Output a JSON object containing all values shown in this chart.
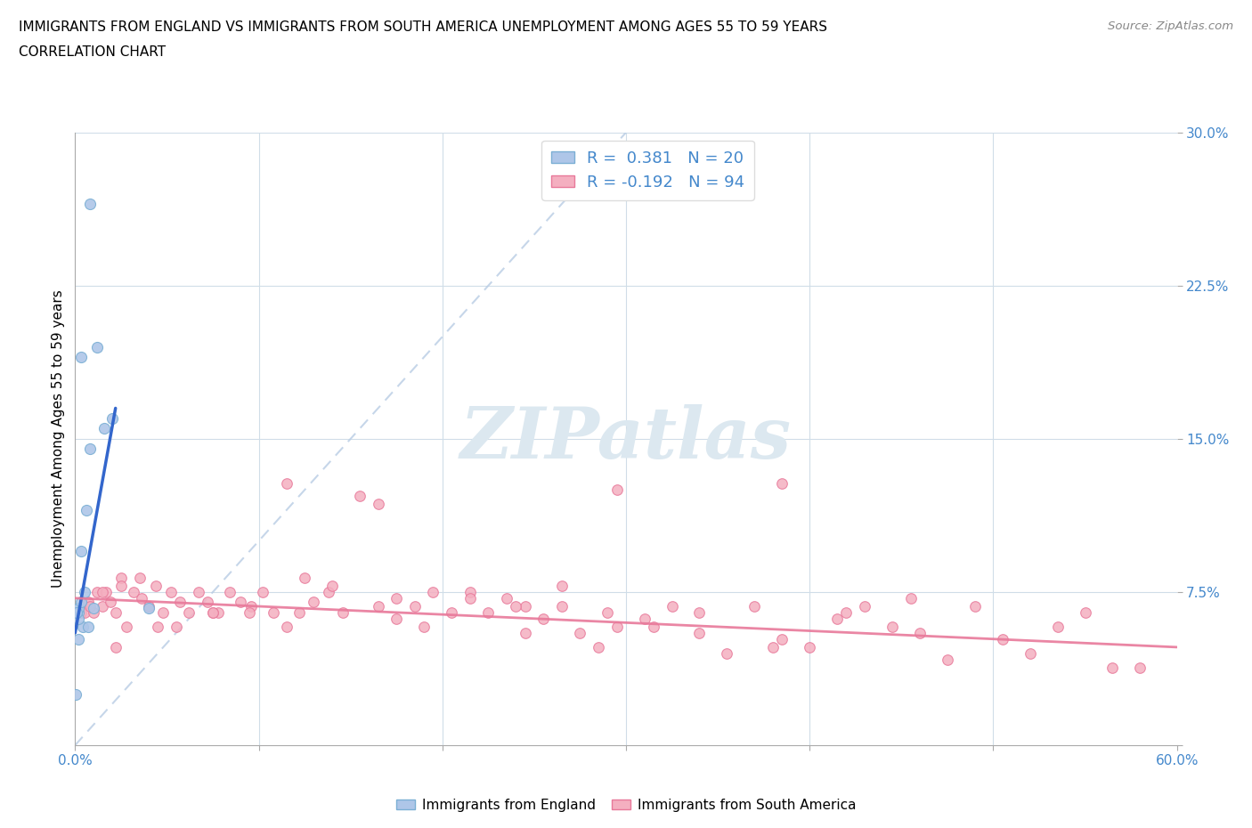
{
  "title_line1": "IMMIGRANTS FROM ENGLAND VS IMMIGRANTS FROM SOUTH AMERICA UNEMPLOYMENT AMONG AGES 55 TO 59 YEARS",
  "title_line2": "CORRELATION CHART",
  "source": "Source: ZipAtlas.com",
  "ylabel": "Unemployment Among Ages 55 to 59 years",
  "xlim": [
    0.0,
    0.6
  ],
  "ylim": [
    0.0,
    0.3
  ],
  "england_r": 0.381,
  "england_n": 20,
  "sa_r": -0.192,
  "sa_n": 94,
  "england_color": "#aec6e8",
  "england_edge": "#7bafd4",
  "england_line_color": "#3366cc",
  "sa_color": "#f4afc0",
  "sa_edge": "#e8799a",
  "sa_line_color": "#e8799a",
  "diagonal_color": "#b8cce4",
  "watermark_color": "#dce8f0",
  "tick_color": "#4488cc",
  "grid_color": "#d0dde8",
  "england_points_x": [
    0.002,
    0.008,
    0.012,
    0.003,
    0.008,
    0.016,
    0.02,
    0.003,
    0.006,
    0.01,
    0.002,
    0.005,
    0.003,
    0.004,
    0.007,
    0.002,
    0.001,
    0.0005,
    0.04,
    0.002
  ],
  "england_points_y": [
    0.065,
    0.265,
    0.195,
    0.19,
    0.145,
    0.155,
    0.16,
    0.095,
    0.115,
    0.067,
    0.067,
    0.075,
    0.07,
    0.058,
    0.058,
    0.062,
    0.065,
    0.025,
    0.067,
    0.052
  ],
  "sa_points_x": [
    0.003,
    0.005,
    0.007,
    0.01,
    0.012,
    0.015,
    0.017,
    0.019,
    0.022,
    0.025,
    0.028,
    0.032,
    0.036,
    0.04,
    0.044,
    0.048,
    0.052,
    0.057,
    0.062,
    0.067,
    0.072,
    0.078,
    0.084,
    0.09,
    0.096,
    0.102,
    0.108,
    0.115,
    0.122,
    0.13,
    0.138,
    0.146,
    0.155,
    0.165,
    0.175,
    0.185,
    0.195,
    0.205,
    0.215,
    0.225,
    0.235,
    0.245,
    0.255,
    0.265,
    0.275,
    0.285,
    0.295,
    0.31,
    0.325,
    0.34,
    0.355,
    0.37,
    0.385,
    0.4,
    0.415,
    0.43,
    0.445,
    0.46,
    0.475,
    0.49,
    0.505,
    0.52,
    0.535,
    0.55,
    0.565,
    0.58,
    0.008,
    0.015,
    0.025,
    0.035,
    0.055,
    0.075,
    0.095,
    0.115,
    0.14,
    0.165,
    0.19,
    0.215,
    0.24,
    0.265,
    0.29,
    0.315,
    0.34,
    0.38,
    0.42,
    0.455,
    0.385,
    0.295,
    0.245,
    0.175,
    0.125,
    0.075,
    0.045,
    0.022
  ],
  "sa_points_y": [
    0.065,
    0.065,
    0.07,
    0.065,
    0.075,
    0.068,
    0.075,
    0.07,
    0.065,
    0.082,
    0.058,
    0.075,
    0.072,
    0.068,
    0.078,
    0.065,
    0.075,
    0.07,
    0.065,
    0.075,
    0.07,
    0.065,
    0.075,
    0.07,
    0.068,
    0.075,
    0.065,
    0.128,
    0.065,
    0.07,
    0.075,
    0.065,
    0.122,
    0.118,
    0.062,
    0.068,
    0.075,
    0.065,
    0.075,
    0.065,
    0.072,
    0.068,
    0.062,
    0.068,
    0.055,
    0.048,
    0.058,
    0.062,
    0.068,
    0.055,
    0.045,
    0.068,
    0.052,
    0.048,
    0.062,
    0.068,
    0.058,
    0.055,
    0.042,
    0.068,
    0.052,
    0.045,
    0.058,
    0.065,
    0.038,
    0.038,
    0.068,
    0.075,
    0.078,
    0.082,
    0.058,
    0.065,
    0.065,
    0.058,
    0.078,
    0.068,
    0.058,
    0.072,
    0.068,
    0.078,
    0.065,
    0.058,
    0.065,
    0.048,
    0.065,
    0.072,
    0.128,
    0.125,
    0.055,
    0.072,
    0.082,
    0.065,
    0.058,
    0.048
  ],
  "eng_trend_x0": 0.0,
  "eng_trend_x1": 0.022,
  "eng_trend_y0": 0.055,
  "eng_trend_y1": 0.165,
  "sa_trend_x0": 0.0,
  "sa_trend_x1": 0.6,
  "sa_trend_y0": 0.072,
  "sa_trend_y1": 0.048
}
